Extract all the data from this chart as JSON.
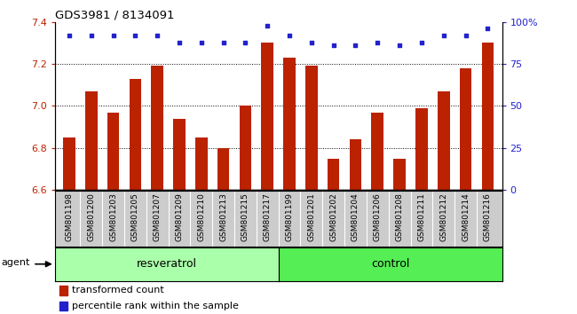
{
  "title": "GDS3981 / 8134091",
  "categories": [
    "GSM801198",
    "GSM801200",
    "GSM801203",
    "GSM801205",
    "GSM801207",
    "GSM801209",
    "GSM801210",
    "GSM801213",
    "GSM801215",
    "GSM801217",
    "GSM801199",
    "GSM801201",
    "GSM801202",
    "GSM801204",
    "GSM801206",
    "GSM801208",
    "GSM801211",
    "GSM801212",
    "GSM801214",
    "GSM801216"
  ],
  "bar_values": [
    6.85,
    7.07,
    6.97,
    7.13,
    7.19,
    6.94,
    6.85,
    6.8,
    7.0,
    7.3,
    7.23,
    7.19,
    6.75,
    6.84,
    6.97,
    6.75,
    6.99,
    7.07,
    7.18,
    7.3
  ],
  "percentile_values": [
    92,
    92,
    92,
    92,
    92,
    88,
    88,
    88,
    88,
    98,
    92,
    88,
    86,
    86,
    88,
    86,
    88,
    92,
    92,
    96
  ],
  "resveratrol_count": 10,
  "control_count": 10,
  "bar_color": "#bb2200",
  "dot_color": "#2222cc",
  "ylim_left": [
    6.6,
    7.4
  ],
  "ylim_right": [
    0,
    100
  ],
  "yticks_left": [
    6.6,
    6.8,
    7.0,
    7.2,
    7.4
  ],
  "yticks_right": [
    0,
    25,
    50,
    75,
    100
  ],
  "ytick_right_labels": [
    "0",
    "25",
    "50",
    "75",
    "100%"
  ],
  "grid_values": [
    6.8,
    7.0,
    7.2
  ],
  "resveratrol_label": "resveratrol",
  "control_label": "control",
  "agent_label": "agent",
  "legend_bar_label": "transformed count",
  "legend_dot_label": "percentile rank within the sample",
  "background_color": "#ffffff",
  "panel_bg_color": "#cccccc",
  "resveratrol_color": "#aaffaa",
  "control_color": "#55ee55"
}
